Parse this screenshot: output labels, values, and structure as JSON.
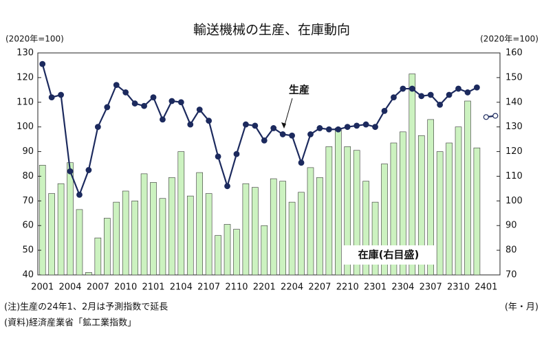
{
  "chart_data": {
    "type": "bar_line",
    "title": "輸送機械の生産、在庫動向",
    "y_unit": "(2020年=100)",
    "y2_unit": "(2020年=100)",
    "x_unit": "(年・月)",
    "notes": [
      "(注)生産の24年1、2月は予測指数で延長",
      "(資料)経済産業省「鉱工業指数」"
    ],
    "categories": [
      "2001",
      null,
      null,
      "2004",
      null,
      null,
      "2007",
      null,
      null,
      "2010",
      null,
      null,
      "2101",
      null,
      null,
      "2104",
      null,
      null,
      "2107",
      null,
      null,
      "2110",
      null,
      null,
      "2201",
      null,
      null,
      "2204",
      null,
      null,
      "2207",
      null,
      null,
      "2210",
      null,
      null,
      "2301",
      null,
      null,
      "2304",
      null,
      null,
      "2307",
      null,
      null,
      "2310",
      null,
      null,
      "2401",
      null
    ],
    "series": [
      {
        "name": "在庫(右目盛)",
        "type": "bar",
        "axis": "y2",
        "color": "#ccf2c0",
        "values": [
          114.5,
          103,
          107,
          115.5,
          96.5,
          71,
          85,
          93,
          99.5,
          104,
          100,
          111,
          107.5,
          101,
          109.5,
          120,
          102,
          111.5,
          103,
          86,
          90.5,
          88.5,
          107,
          105.5,
          90,
          109,
          108,
          99.5,
          103.5,
          113.5,
          109.5,
          122,
          129.5,
          122,
          120.5,
          108,
          99.5,
          115,
          123.5,
          128,
          151.5,
          126.5,
          133,
          120,
          123.5,
          130,
          140.5,
          121.5,
          null,
          null
        ]
      },
      {
        "name": "生産",
        "type": "line",
        "axis": "y",
        "color": "#1c2a5e",
        "values": [
          125.5,
          112,
          113,
          82,
          72.5,
          82.5,
          100,
          108,
          117,
          114,
          109.5,
          108.5,
          112,
          103,
          110.5,
          110,
          101,
          107,
          102.5,
          88,
          76,
          89,
          101,
          100.5,
          94.5,
          99.5,
          97,
          96.5,
          85.5,
          97,
          99.5,
          99,
          99,
          100,
          100.5,
          101,
          100,
          106.5,
          112,
          115.5,
          115.5,
          112.5,
          113,
          109,
          113,
          115.5,
          114,
          116,
          null,
          null
        ]
      },
      {
        "type": "line",
        "axis": "y",
        "color": "#1c2a5e",
        "marker": "open",
        "values": [
          null,
          null,
          null,
          null,
          null,
          null,
          null,
          null,
          null,
          null,
          null,
          null,
          null,
          null,
          null,
          null,
          null,
          null,
          null,
          null,
          null,
          null,
          null,
          null,
          null,
          null,
          null,
          null,
          null,
          null,
          null,
          null,
          null,
          null,
          null,
          null,
          null,
          null,
          null,
          null,
          null,
          null,
          null,
          null,
          null,
          null,
          null,
          null,
          104,
          104.5
        ]
      }
    ],
    "ylim": [
      40,
      130
    ],
    "yticks": [
      40,
      50,
      60,
      70,
      80,
      90,
      100,
      110,
      120,
      130
    ],
    "y2lim": [
      70,
      160
    ],
    "y2ticks": [
      70,
      80,
      90,
      100,
      110,
      120,
      130,
      140,
      150,
      160
    ],
    "grid": false
  }
}
